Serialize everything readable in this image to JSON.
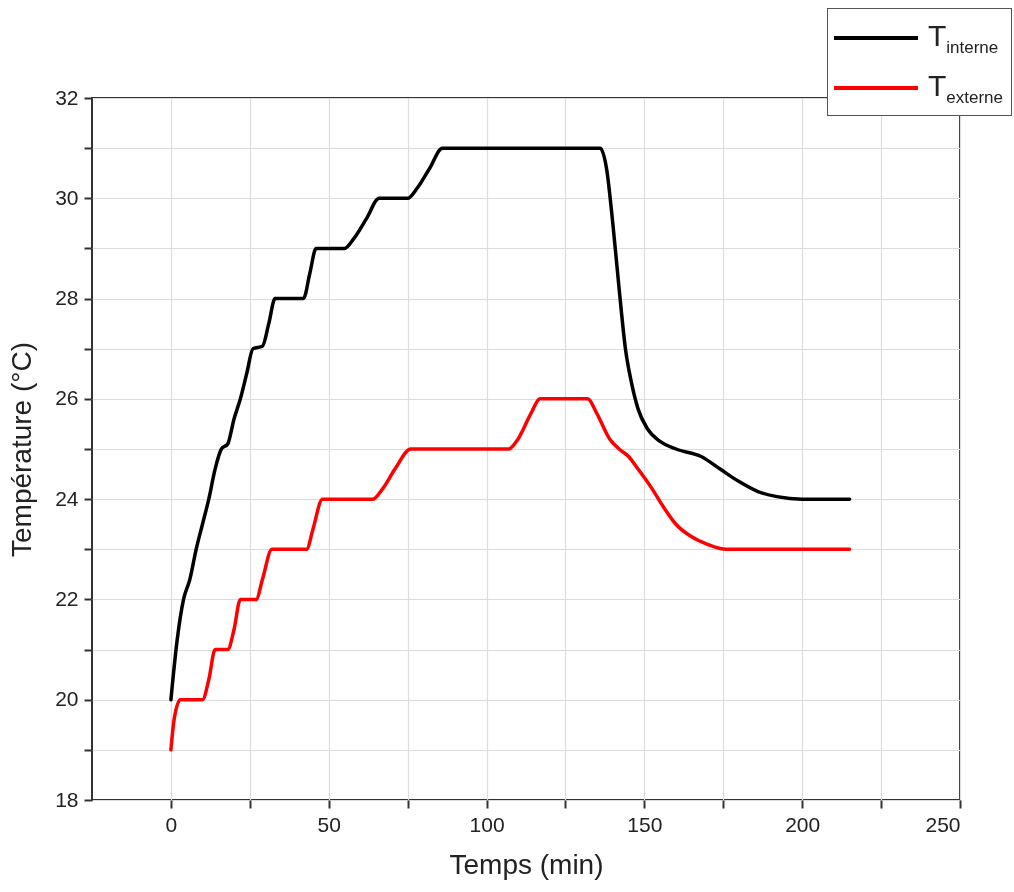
{
  "chart_data": {
    "type": "line",
    "xlabel": "Temps (min)",
    "ylabel": "Température (°C)",
    "xlim": [
      -25,
      250
    ],
    "ylim": [
      18,
      32
    ],
    "xticks": [
      0,
      {
        "value": 25,
        "label": null
      },
      50,
      {
        "value": 75,
        "label": null
      },
      100,
      {
        "value": 125,
        "label": null
      },
      150,
      {
        "value": 175,
        "label": null
      },
      200,
      {
        "value": 225,
        "label": null
      },
      250
    ],
    "yticks": [
      18,
      {
        "value": 19,
        "label": null
      },
      20,
      {
        "value": 21,
        "label": null
      },
      22,
      {
        "value": 23,
        "label": null
      },
      24,
      {
        "value": 25,
        "label": null
      },
      26,
      {
        "value": 27,
        "label": null
      },
      28,
      {
        "value": 29,
        "label": null
      },
      30,
      {
        "value": 31,
        "label": null
      },
      32
    ],
    "grid": true,
    "legend": "top right",
    "marker": "none",
    "line_style": "solid",
    "series": [
      {
        "name": "T$_{interne}$",
        "color": "#000000",
        "x": [
          0,
          2,
          4,
          6,
          8,
          10,
          12,
          14,
          16,
          18,
          20,
          22,
          24,
          26,
          29,
          31,
          33,
          42,
          44,
          46,
          55,
          58,
          62,
          66,
          75,
          78,
          82,
          86,
          136,
          138,
          140,
          142,
          144,
          146,
          148,
          151,
          155,
          160,
          168,
          174,
          180,
          186,
          192,
          200,
          215
        ],
        "values": [
          20,
          21.2,
          22,
          22.4,
          23,
          23.5,
          24,
          24.6,
          25,
          25.1,
          25.6,
          26,
          26.5,
          27,
          27.05,
          27.5,
          28,
          28,
          28.5,
          29,
          29,
          29.2,
          29.6,
          30,
          30,
          30.2,
          30.6,
          31,
          31,
          30.6,
          29.5,
          28.2,
          27,
          26.3,
          25.8,
          25.4,
          25.15,
          25,
          24.85,
          24.6,
          24.35,
          24.15,
          24.05,
          24,
          24
        ]
      },
      {
        "name": "T$_{externe}$",
        "color": "#ff0000",
        "x": [
          0,
          1,
          3,
          10,
          12,
          14,
          18,
          20,
          22,
          27,
          29,
          32,
          43,
          45,
          48,
          64,
          67,
          71,
          76,
          107,
          110,
          114,
          117,
          132,
          135,
          139,
          142,
          145,
          148,
          152,
          156,
          160,
          165,
          170,
          176,
          215
        ],
        "values": [
          19,
          19.6,
          20,
          20,
          20.4,
          21,
          21,
          21.4,
          22,
          22,
          22.4,
          23,
          23,
          23.4,
          24,
          24,
          24.2,
          24.6,
          25,
          25,
          25.2,
          25.7,
          26,
          26,
          25.7,
          25.2,
          25,
          24.85,
          24.6,
          24.25,
          23.85,
          23.5,
          23.25,
          23.1,
          23,
          23
        ]
      }
    ]
  }
}
